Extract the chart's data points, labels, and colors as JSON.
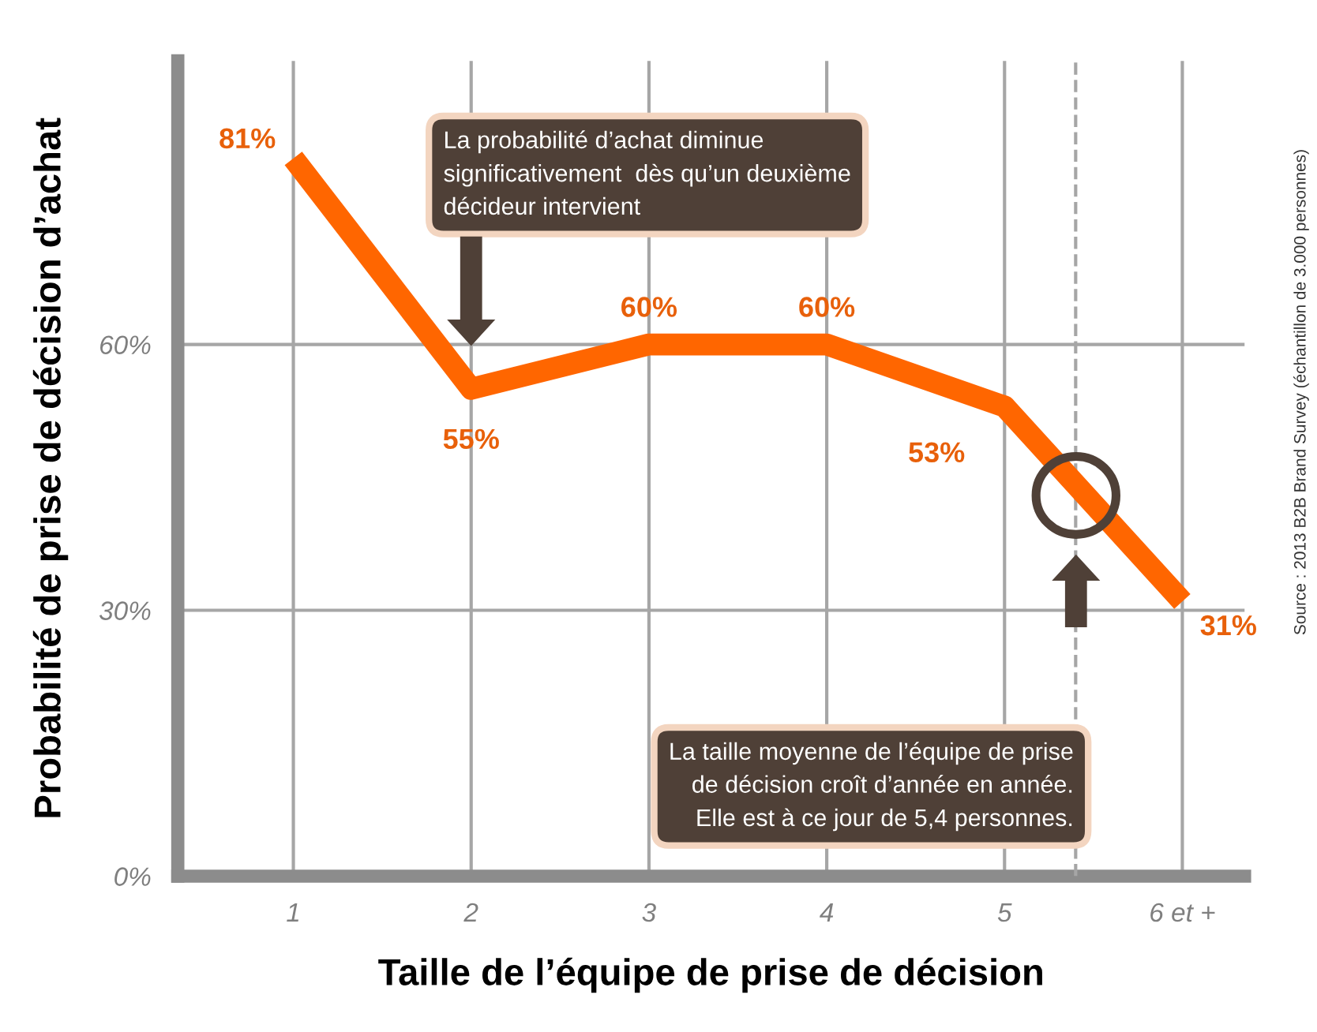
{
  "chart_data": {
    "type": "line",
    "xlabel": "Taille de l’équipe de prise de décision",
    "ylabel": "Probabilité de prise de décision d’achat",
    "x": [
      1,
      2,
      3,
      4,
      5,
      6
    ],
    "series": [
      {
        "color": "#ff6600",
        "values": [
          81,
          55,
          60,
          60,
          53,
          31
        ],
        "value_labels": [
          "81%",
          "55%",
          "60%",
          "60%",
          "53%",
          "31%"
        ]
      }
    ],
    "xlim": [
      0.35,
      6.35
    ],
    "xticks": [
      1,
      2,
      3,
      4,
      5,
      {
        "value": 6,
        "label": "6 et +"
      }
    ],
    "ylim": [
      0,
      92
    ],
    "yticks": [
      {
        "value": 0,
        "label": "0%"
      },
      {
        "value": 30,
        "label": "30%"
      },
      {
        "value": 60,
        "label": "60%"
      }
    ],
    "grid": true,
    "marker": "none",
    "line_style": "solid",
    "ref_lines": [
      {
        "axis": "x",
        "value": 5.4,
        "label": null,
        "color": "#a6a6a6",
        "line_style": "dashed"
      }
    ],
    "annotations": [
      "La probabilité d’achat diminue\nsignificativement  dès qu’un deuxième\ndécideur intervient",
      "La taille moyenne de l’équipe de prise\nde décision croît d’année en année.\nElle est à ce jour de 5,4 personnes.",
      "Source : 2013 B2B Brand Survey (échantillon de 3.000 personnes)"
    ]
  }
}
